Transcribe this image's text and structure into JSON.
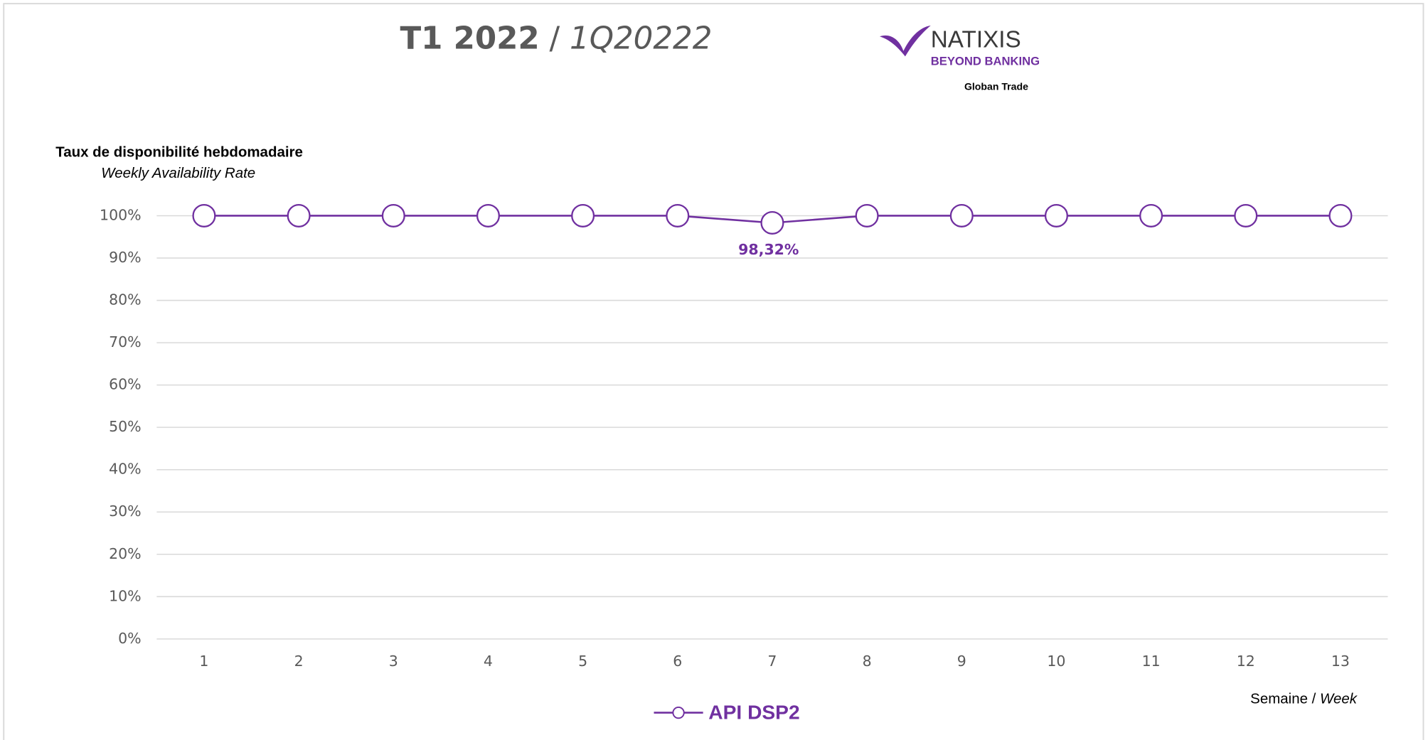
{
  "header": {
    "title_main": "T1 2022",
    "title_separator": "/",
    "title_alt": "1Q20222",
    "logo_name": "NATIXIS",
    "logo_tagline": "BEYOND BANKING",
    "logo_caption": "Globan Trade"
  },
  "chart_data": {
    "type": "line",
    "y_label": "Taux de disponibilité hebdomadaire",
    "y_label_en": "Weekly Availability Rate",
    "x_label": "Semaine",
    "x_label_separator": "/",
    "x_label_en": "Week",
    "categories": [
      "1",
      "2",
      "3",
      "4",
      "5",
      "6",
      "7",
      "8",
      "9",
      "10",
      "11",
      "12",
      "13"
    ],
    "series": [
      {
        "name": "API DSP2",
        "color": "#7030a0",
        "values": [
          100,
          100,
          100,
          100,
          100,
          100,
          98.32,
          100,
          100,
          100,
          100,
          100,
          100
        ],
        "value_labels": [
          null,
          null,
          null,
          null,
          null,
          null,
          "98,32%",
          null,
          null,
          null,
          null,
          null,
          null
        ]
      }
    ],
    "ylim": [
      0,
      100
    ],
    "yticks": [
      {
        "value": 0,
        "label": "0%"
      },
      {
        "value": 10,
        "label": "10%"
      },
      {
        "value": 20,
        "label": "20%"
      },
      {
        "value": 30,
        "label": "30%"
      },
      {
        "value": 40,
        "label": "40%"
      },
      {
        "value": 50,
        "label": "50%"
      },
      {
        "value": 60,
        "label": "60%"
      },
      {
        "value": 70,
        "label": "70%"
      },
      {
        "value": 80,
        "label": "80%"
      },
      {
        "value": 90,
        "label": "90%"
      },
      {
        "value": 100,
        "label": "100%"
      }
    ],
    "grid": true,
    "legend": "bottom"
  }
}
